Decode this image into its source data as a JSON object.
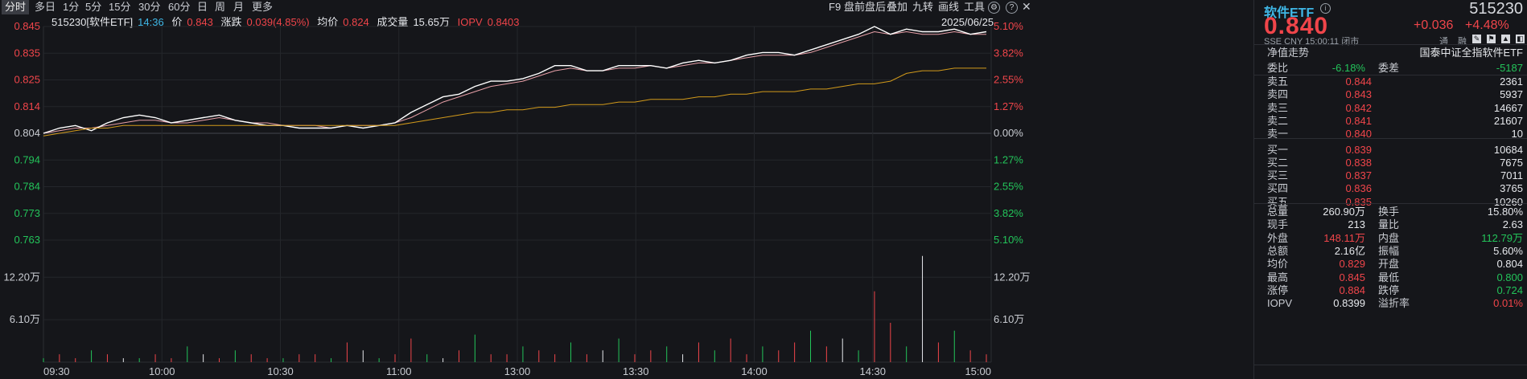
{
  "toolbar": {
    "periods": [
      "分时",
      "多日",
      "1分",
      "5分",
      "15分",
      "30分",
      "60分",
      "日",
      "周",
      "月",
      "更多"
    ],
    "active_period": "分时",
    "right_buttons": [
      "F9",
      "盘前盘后",
      "叠加",
      "九转",
      "画线",
      "工具"
    ]
  },
  "info": {
    "code_name": "515230[软件ETF]",
    "time": "14:36",
    "price_label": "价",
    "price": "0.843",
    "change_label": "涨跌",
    "change": "0.039(4.85%)",
    "avg_label": "均价",
    "avg": "0.824",
    "volume_label": "成交量",
    "volume": "15.65万",
    "iopv_label": "IOPV",
    "iopv": "0.8403",
    "date": "2025/06/25"
  },
  "chart_data": {
    "type": "line",
    "xlabels": [
      "09:30",
      "10:00",
      "10:30",
      "11:00",
      "13:00",
      "13:30",
      "14:00",
      "14:30",
      "15:00"
    ],
    "price_ticks": [
      "0.845",
      "0.835",
      "0.825",
      "0.814",
      "0.804",
      "0.794",
      "0.784",
      "0.773",
      "0.763"
    ],
    "pct_ticks": [
      "5.10%",
      "3.82%",
      "2.55%",
      "1.27%",
      "0.00%",
      "1.27%",
      "2.55%",
      "3.82%",
      "5.10%"
    ],
    "vol_ticks": [
      "12.20万",
      "6.10万"
    ],
    "ylim": [
      0.763,
      0.845
    ],
    "prev_close": 0.804,
    "series": [
      {
        "values": [
          0.804,
          0.806,
          0.807,
          0.805,
          0.808,
          0.81,
          0.811,
          0.81,
          0.808,
          0.809,
          0.81,
          0.811,
          0.809,
          0.808,
          0.807,
          0.807,
          0.806,
          0.806,
          0.806,
          0.807,
          0.806,
          0.807,
          0.808,
          0.812,
          0.815,
          0.818,
          0.819,
          0.822,
          0.824,
          0.824,
          0.825,
          0.827,
          0.83,
          0.83,
          0.828,
          0.828,
          0.83,
          0.83,
          0.83,
          0.829,
          0.831,
          0.832,
          0.831,
          0.832,
          0.834,
          0.835,
          0.835,
          0.834,
          0.836,
          0.838,
          0.84,
          0.842,
          0.845,
          0.842,
          0.844,
          0.843,
          0.843,
          0.844,
          0.842,
          0.843
        ]
      },
      {
        "values": [
          0.804,
          0.805,
          0.806,
          0.806,
          0.807,
          0.808,
          0.809,
          0.809,
          0.808,
          0.808,
          0.809,
          0.81,
          0.809,
          0.808,
          0.808,
          0.807,
          0.807,
          0.807,
          0.806,
          0.807,
          0.807,
          0.807,
          0.808,
          0.81,
          0.813,
          0.816,
          0.818,
          0.82,
          0.822,
          0.823,
          0.824,
          0.826,
          0.828,
          0.829,
          0.828,
          0.828,
          0.829,
          0.829,
          0.83,
          0.829,
          0.83,
          0.831,
          0.831,
          0.832,
          0.833,
          0.834,
          0.834,
          0.834,
          0.835,
          0.837,
          0.839,
          0.841,
          0.843,
          0.842,
          0.843,
          0.842,
          0.842,
          0.843,
          0.842,
          0.842
        ]
      },
      {
        "values": [
          0.803,
          0.804,
          0.805,
          0.806,
          0.806,
          0.807,
          0.807,
          0.807,
          0.807,
          0.807,
          0.807,
          0.807,
          0.807,
          0.807,
          0.807,
          0.807,
          0.807,
          0.807,
          0.807,
          0.807,
          0.807,
          0.807,
          0.807,
          0.808,
          0.809,
          0.81,
          0.811,
          0.812,
          0.812,
          0.813,
          0.813,
          0.814,
          0.814,
          0.815,
          0.815,
          0.815,
          0.816,
          0.816,
          0.817,
          0.817,
          0.817,
          0.818,
          0.818,
          0.819,
          0.819,
          0.82,
          0.82,
          0.82,
          0.821,
          0.821,
          0.822,
          0.823,
          0.823,
          0.824,
          0.827,
          0.828,
          0.828,
          0.829,
          0.829,
          0.829
        ]
      }
    ],
    "volume": [
      1,
      2,
      1,
      3,
      2,
      1,
      1,
      2,
      1,
      4,
      2,
      1,
      3,
      2,
      1,
      1,
      2,
      2,
      1,
      5,
      3,
      1,
      2,
      6,
      2,
      1,
      3,
      7,
      2,
      2,
      4,
      3,
      2,
      5,
      2,
      3,
      6,
      2,
      3,
      4,
      2,
      5,
      3,
      6,
      2,
      4,
      3,
      5,
      8,
      4,
      6,
      3,
      18,
      10,
      4,
      27,
      5,
      8,
      3,
      2
    ]
  },
  "panel": {
    "name": "软件ETF",
    "code": "515230",
    "price": "0.840",
    "change": "+0.036",
    "change_pct": "+4.48%",
    "market": "SSE",
    "currency": "CNY",
    "time": "15:00:11",
    "status": "闭市",
    "btn_tong": "通",
    "btn_rong": "融",
    "nav_trend": "净值走势",
    "index_name": "国泰中证全指软件ETF",
    "weibi_label": "委比",
    "weibi": "-6.18%",
    "weicha_label": "委差",
    "weicha": "-5187",
    "asks": [
      {
        "label": "卖五",
        "price": "0.844",
        "vol": "2361"
      },
      {
        "label": "卖四",
        "price": "0.843",
        "vol": "5937"
      },
      {
        "label": "卖三",
        "price": "0.842",
        "vol": "14667"
      },
      {
        "label": "卖二",
        "price": "0.841",
        "vol": "21607"
      },
      {
        "label": "卖一",
        "price": "0.840",
        "vol": "10"
      }
    ],
    "bids": [
      {
        "label": "买一",
        "price": "0.839",
        "vol": "10684"
      },
      {
        "label": "买二",
        "price": "0.838",
        "vol": "7675"
      },
      {
        "label": "买三",
        "price": "0.837",
        "vol": "7011"
      },
      {
        "label": "买四",
        "price": "0.836",
        "vol": "3765"
      },
      {
        "label": "买五",
        "price": "0.835",
        "vol": "10260"
      }
    ],
    "stats": [
      {
        "l1": "总量",
        "v1": "260.90万",
        "l2": "换手",
        "v2": "15.80%"
      },
      {
        "l1": "现手",
        "v1": "213",
        "l2": "量比",
        "v2": "2.63"
      },
      {
        "l1": "外盘",
        "v1": "148.11万",
        "l2": "内盘",
        "v2": "112.79万"
      },
      {
        "l1": "总额",
        "v1": "2.16亿",
        "l2": "振幅",
        "v2": "5.60%"
      },
      {
        "l1": "均价",
        "v1": "0.829",
        "l2": "开盘",
        "v2": "0.804"
      },
      {
        "l1": "最高",
        "v1": "0.845",
        "l2": "最低",
        "v2": "0.800"
      },
      {
        "l1": "涨停",
        "v1": "0.884",
        "l2": "跌停",
        "v2": "0.724"
      },
      {
        "l1": "IOPV",
        "v1": "0.8399",
        "l2": "溢折率",
        "v2": "0.01%"
      }
    ],
    "colors": {
      "up": "#f0454a",
      "down": "#23c45a",
      "price_line": "#ffffff",
      "avg_line": "#d29a1a",
      "iopv_line": "#e8a0a8"
    }
  }
}
